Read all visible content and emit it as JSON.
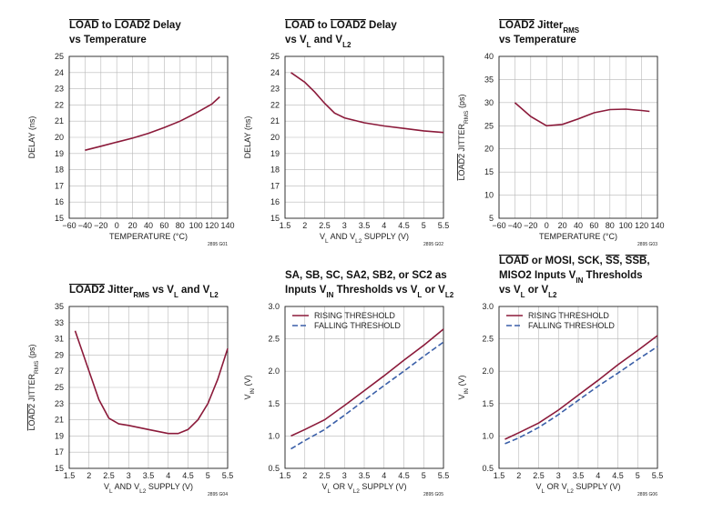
{
  "chart_data": [
    {
      "type": "line",
      "title": [
        [
          {
            "text": "LOAD",
            "style": "overline"
          },
          {
            "text": " to "
          },
          {
            "text": "LOAD2",
            "style": "overline"
          },
          {
            "text": " Delay"
          }
        ],
        [
          {
            "text": "vs Temperature"
          }
        ]
      ],
      "xlabel": [
        {
          "text": "TEMPERATURE (°C)"
        }
      ],
      "ylabel": [
        {
          "text": "DELAY (ns)"
        }
      ],
      "figure_id": "2895 G01",
      "x": [
        -40,
        -20,
        0,
        20,
        40,
        60,
        80,
        100,
        120,
        130
      ],
      "series": [
        {
          "color": "#8b1a3a",
          "values": [
            19.2,
            19.45,
            19.7,
            19.95,
            20.25,
            20.6,
            21.0,
            21.5,
            22.05,
            22.5
          ]
        }
      ],
      "xlim": [
        -60,
        140
      ],
      "xticks": [
        {
          "value": -60,
          "label": "−60"
        },
        {
          "value": -40,
          "label": "−40"
        },
        {
          "value": -20,
          "label": "−20"
        },
        0,
        20,
        40,
        60,
        80,
        100,
        120,
        140
      ],
      "ylim": [
        15,
        25
      ],
      "yticks": [
        15,
        16,
        17,
        18,
        19,
        20,
        21,
        22,
        23,
        24,
        25
      ],
      "grid": true
    },
    {
      "type": "line",
      "title": [
        [
          {
            "text": "LOAD",
            "style": "overline"
          },
          {
            "text": " to "
          },
          {
            "text": "LOAD2",
            "style": "overline"
          },
          {
            "text": " Delay"
          }
        ],
        [
          {
            "text": "vs V"
          },
          {
            "text": "L",
            "style": "sub"
          },
          {
            "text": " and V"
          },
          {
            "text": "L2",
            "style": "sub"
          }
        ]
      ],
      "xlabel": [
        {
          "text": "V"
        },
        {
          "text": "L",
          "style": "sub"
        },
        {
          "text": " AND V"
        },
        {
          "text": "L2",
          "style": "sub"
        },
        {
          "text": " SUPPLY (V)"
        }
      ],
      "ylabel": [
        {
          "text": "DELAY (ns)"
        }
      ],
      "figure_id": "2895 G02",
      "x": [
        1.65,
        2,
        2.25,
        2.5,
        2.75,
        3,
        3.5,
        4,
        4.5,
        5,
        5.5
      ],
      "series": [
        {
          "color": "#8b1a3a",
          "values": [
            24,
            23.4,
            22.8,
            22.1,
            21.5,
            21.2,
            20.9,
            20.7,
            20.55,
            20.4,
            20.3
          ]
        }
      ],
      "xlim": [
        1.5,
        5.5
      ],
      "xticks": [
        1.5,
        2,
        2.5,
        3,
        3.5,
        4,
        4.5,
        5,
        5.5
      ],
      "ylim": [
        15,
        25
      ],
      "yticks": [
        15,
        16,
        17,
        18,
        19,
        20,
        21,
        22,
        23,
        24,
        25
      ],
      "grid": true
    },
    {
      "type": "line",
      "title": [
        [
          {
            "text": "LOAD2",
            "style": "overline"
          },
          {
            "text": " Jitter"
          },
          {
            "text": "RMS",
            "style": "sub"
          }
        ],
        [
          {
            "text": "vs Temperature"
          }
        ]
      ],
      "xlabel": [
        {
          "text": "TEMPERATURE (°C)"
        }
      ],
      "ylabel": [
        {
          "text": "LOAD2",
          "style": "overline"
        },
        {
          "text": " JITTER"
        },
        {
          "text": "RMS",
          "style": "sub"
        },
        {
          "text": " (ps)"
        }
      ],
      "figure_id": "2895 G03",
      "x": [
        -40,
        -20,
        0,
        20,
        40,
        60,
        80,
        100,
        120,
        130
      ],
      "series": [
        {
          "color": "#8b1a3a",
          "values": [
            30,
            27,
            25,
            25.3,
            26.5,
            27.8,
            28.5,
            28.6,
            28.3,
            28.1
          ]
        }
      ],
      "xlim": [
        -60,
        140
      ],
      "xticks": [
        {
          "value": -60,
          "label": "−60"
        },
        {
          "value": -40,
          "label": "−40"
        },
        {
          "value": -20,
          "label": "−20"
        },
        0,
        20,
        40,
        60,
        80,
        100,
        120,
        140
      ],
      "ylim": [
        5,
        40
      ],
      "yticks": [
        5,
        10,
        15,
        20,
        25,
        30,
        35,
        40
      ],
      "grid": true
    },
    {
      "type": "line",
      "title": [
        [
          {
            "text": "LOAD2",
            "style": "overline"
          },
          {
            "text": " Jitter"
          },
          {
            "text": "RMS",
            "style": "sub"
          },
          {
            "text": " vs V"
          },
          {
            "text": "L",
            "style": "sub"
          },
          {
            "text": " and V"
          },
          {
            "text": "L2",
            "style": "sub"
          }
        ]
      ],
      "xlabel": [
        {
          "text": "V"
        },
        {
          "text": "L",
          "style": "sub"
        },
        {
          "text": " AND V"
        },
        {
          "text": "L2",
          "style": "sub"
        },
        {
          "text": " SUPPLY (V)"
        }
      ],
      "ylabel": [
        {
          "text": "LOAD2",
          "style": "overline"
        },
        {
          "text": " JITTER"
        },
        {
          "text": "RMS",
          "style": "sub"
        },
        {
          "text": " (ps)"
        }
      ],
      "figure_id": "2895 G04",
      "x": [
        1.65,
        2,
        2.25,
        2.5,
        2.75,
        3,
        3.5,
        4,
        4.25,
        4.5,
        4.75,
        5,
        5.25,
        5.5
      ],
      "series": [
        {
          "color": "#8b1a3a",
          "values": [
            32,
            27,
            23.5,
            21.2,
            20.5,
            20.3,
            19.8,
            19.3,
            19.3,
            19.8,
            21,
            23,
            26,
            29.8
          ]
        }
      ],
      "xlim": [
        1.5,
        5.5
      ],
      "xticks": [
        1.5,
        2,
        2.5,
        3,
        3.5,
        4,
        4.5,
        5,
        5.5
      ],
      "ylim": [
        15,
        35
      ],
      "yticks": [
        15,
        17,
        19,
        21,
        23,
        25,
        27,
        29,
        31,
        33,
        35
      ],
      "grid": true
    },
    {
      "type": "line",
      "title": [
        [
          {
            "text": "SA, SB, SC, SA2, SB2, or SC2 as"
          }
        ],
        [
          {
            "text": "Inputs V"
          },
          {
            "text": "IN",
            "style": "sub"
          },
          {
            "text": " Thresholds vs V"
          },
          {
            "text": "L",
            "style": "sub"
          },
          {
            "text": " or V"
          },
          {
            "text": "L2",
            "style": "sub"
          }
        ]
      ],
      "xlabel": [
        {
          "text": "V"
        },
        {
          "text": "L",
          "style": "sub"
        },
        {
          "text": " OR V"
        },
        {
          "text": "L2",
          "style": "sub"
        },
        {
          "text": " SUPPLY (V)"
        }
      ],
      "ylabel": [
        {
          "text": "V"
        },
        {
          "text": "IN",
          "style": "sub"
        },
        {
          "text": " (V)"
        }
      ],
      "figure_id": "2895 G05",
      "x": [
        1.65,
        2,
        2.5,
        3,
        3.5,
        4,
        4.5,
        5,
        5.5
      ],
      "series": [
        {
          "name": "RISING THRESHOLD",
          "color": "#8b1a3a",
          "values": [
            1.0,
            1.1,
            1.25,
            1.47,
            1.7,
            1.93,
            2.17,
            2.4,
            2.65
          ]
        },
        {
          "name": "FALLING THRESHOLD",
          "color": "#3a5fa8",
          "dash": true,
          "values": [
            0.8,
            0.93,
            1.1,
            1.32,
            1.55,
            1.78,
            2.0,
            2.23,
            2.45
          ]
        }
      ],
      "xlim": [
        1.5,
        5.5
      ],
      "xticks": [
        1.5,
        2,
        2.5,
        3,
        3.5,
        4,
        4.5,
        5,
        5.5
      ],
      "ylim": [
        0.5,
        3.0
      ],
      "yticks": [
        0.5,
        {
          "value": 1,
          "label": "1.0"
        },
        1.5,
        {
          "value": 2,
          "label": "2.0"
        },
        2.5,
        {
          "value": 3,
          "label": "3.0"
        }
      ],
      "grid": true,
      "legend": "top-left"
    },
    {
      "type": "line",
      "title": [
        [
          {
            "text": "LOAD",
            "style": "overline"
          },
          {
            "text": " or MOSI, SCK, "
          },
          {
            "text": "SS",
            "style": "overline"
          },
          {
            "text": ", "
          },
          {
            "text": "SSB",
            "style": "overline"
          },
          {
            "text": ","
          }
        ],
        [
          {
            "text": "MISO2 Inputs V"
          },
          {
            "text": "IN",
            "style": "sub"
          },
          {
            "text": " Thresholds"
          }
        ],
        [
          {
            "text": "vs V"
          },
          {
            "text": "L",
            "style": "sub"
          },
          {
            "text": " or V"
          },
          {
            "text": "L2",
            "style": "sub"
          }
        ]
      ],
      "xlabel": [
        {
          "text": "V"
        },
        {
          "text": "L",
          "style": "sub"
        },
        {
          "text": " OR V"
        },
        {
          "text": "L2",
          "style": "sub"
        },
        {
          "text": " SUPPLY (V)"
        }
      ],
      "ylabel": [
        {
          "text": "V"
        },
        {
          "text": "IN",
          "style": "sub"
        },
        {
          "text": " (V)"
        }
      ],
      "figure_id": "2895 G06",
      "x": [
        1.65,
        2,
        2.5,
        3,
        3.5,
        4,
        4.5,
        5,
        5.5
      ],
      "series": [
        {
          "name": "RISING THRESHOLD",
          "color": "#8b1a3a",
          "values": [
            0.95,
            1.05,
            1.2,
            1.4,
            1.63,
            1.86,
            2.1,
            2.32,
            2.55
          ]
        },
        {
          "name": "FALLING THRESHOLD",
          "color": "#3a5fa8",
          "dash": true,
          "values": [
            0.88,
            0.97,
            1.13,
            1.33,
            1.55,
            1.77,
            1.97,
            2.18,
            2.38
          ]
        }
      ],
      "xlim": [
        1.5,
        5.5
      ],
      "xticks": [
        1.5,
        2,
        2.5,
        3,
        3.5,
        4,
        4.5,
        5,
        5.5
      ],
      "ylim": [
        0.5,
        3.0
      ],
      "yticks": [
        0.5,
        {
          "value": 1,
          "label": "1.0"
        },
        1.5,
        {
          "value": 2,
          "label": "2.0"
        },
        2.5,
        {
          "value": 3,
          "label": "3.0"
        }
      ],
      "grid": true,
      "legend": "top-left"
    }
  ]
}
